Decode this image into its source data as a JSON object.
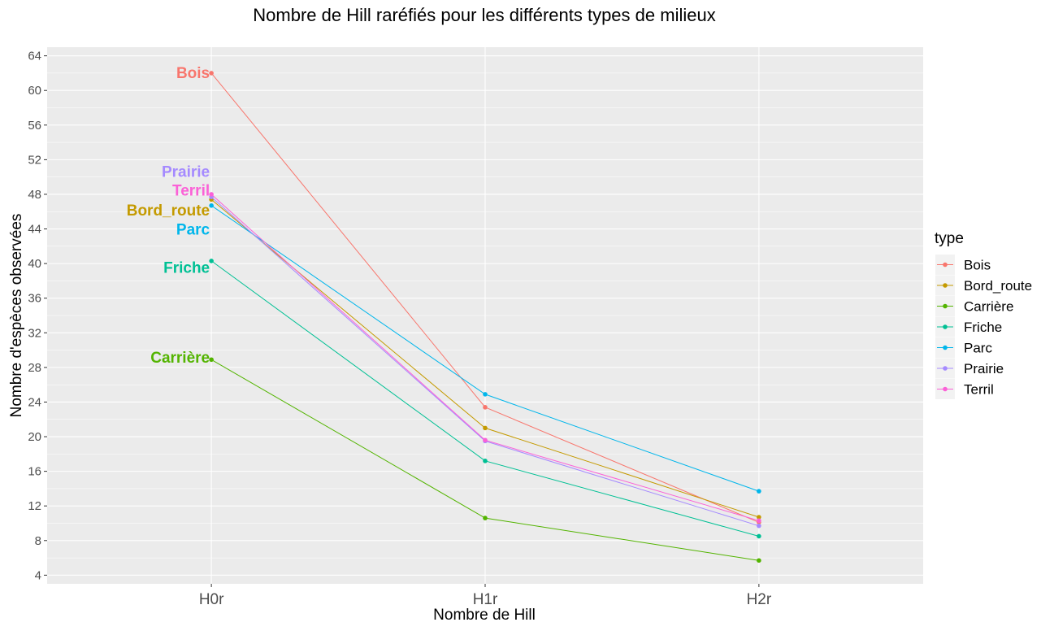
{
  "chart_data": {
    "type": "line",
    "title": "Nombre de Hill raréfiés pour les différents types de milieux",
    "xlabel": "Nombre de Hill",
    "ylabel": "Nombre d'espèces observées",
    "categories": [
      "H0r",
      "H1r",
      "H2r"
    ],
    "ylim": [
      3,
      65
    ],
    "yticks": [
      4,
      8,
      12,
      16,
      20,
      24,
      28,
      32,
      36,
      40,
      44,
      48,
      52,
      56,
      60,
      64
    ],
    "grid": true,
    "legend": {
      "title": "type",
      "position": "right"
    },
    "series": [
      {
        "name": "Bois",
        "color": "#F8766D",
        "values": [
          62.0,
          23.4,
          10.1
        ]
      },
      {
        "name": "Bord_route",
        "color": "#C49A00",
        "values": [
          47.4,
          21.0,
          10.7
        ]
      },
      {
        "name": "Carrière",
        "color": "#53B400",
        "values": [
          28.9,
          10.6,
          5.7
        ]
      },
      {
        "name": "Friche",
        "color": "#00C094",
        "values": [
          40.3,
          17.2,
          8.5
        ]
      },
      {
        "name": "Parc",
        "color": "#00B6EB",
        "values": [
          46.7,
          24.9,
          13.7
        ]
      },
      {
        "name": "Prairie",
        "color": "#A58AFF",
        "values": [
          47.7,
          19.5,
          9.7
        ]
      },
      {
        "name": "Terril",
        "color": "#FB61D7",
        "values": [
          48.0,
          19.6,
          10.3
        ]
      }
    ],
    "annotations": [
      {
        "text": "Bois",
        "color": "#F8766D",
        "x": "H0r",
        "y": 62.0
      },
      {
        "text": "Prairie",
        "color": "#A58AFF",
        "x": "H0r",
        "y": 50.6
      },
      {
        "text": "Terril",
        "color": "#FB61D7",
        "x": "H0r",
        "y": 48.4
      },
      {
        "text": "Bord_route",
        "color": "#C49A00",
        "x": "H0r",
        "y": 46.1
      },
      {
        "text": "Parc",
        "color": "#00B6EB",
        "x": "H0r",
        "y": 43.9
      },
      {
        "text": "Friche",
        "color": "#00C094",
        "x": "H0r",
        "y": 39.5
      },
      {
        "text": "Carrière",
        "color": "#53B400",
        "x": "H0r",
        "y": 29.1
      }
    ]
  }
}
